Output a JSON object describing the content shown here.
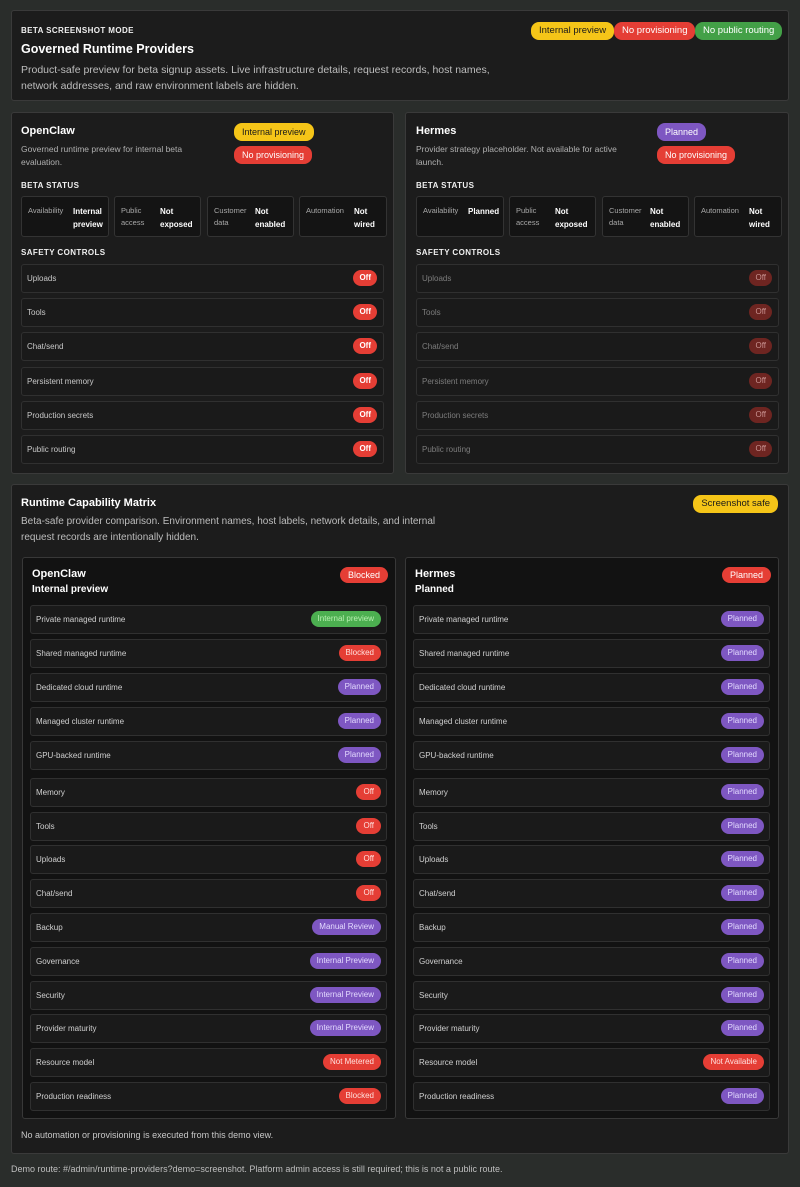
{
  "header": {
    "mode": "BETA SCREENSHOT MODE",
    "title": "Governed Runtime Providers",
    "description": "Product-safe preview for beta signup assets. Live infrastructure details, request records, host names, network addresses, and raw environment labels are hidden.",
    "badges": [
      "Internal preview",
      "No provisioning",
      "No public routing"
    ]
  },
  "providers": [
    {
      "name": "OpenClaw",
      "description": "Governed runtime preview for internal beta evaluation.",
      "badges": [
        "Internal preview",
        "No provisioning"
      ],
      "status_title": "BETA STATUS",
      "status": [
        {
          "label": "Availability",
          "value": "Internal preview"
        },
        {
          "label": "Public access",
          "value": "Not exposed"
        },
        {
          "label": "Customer data",
          "value": "Not enabled"
        },
        {
          "label": "Automation",
          "value": "Not wired"
        }
      ],
      "controls_title": "SAFETY CONTROLS",
      "controls": [
        {
          "label": "Uploads",
          "value": "Off"
        },
        {
          "label": "Tools",
          "value": "Off"
        },
        {
          "label": "Chat/send",
          "value": "Off"
        },
        {
          "label": "Persistent memory",
          "value": "Off"
        },
        {
          "label": "Production secrets",
          "value": "Off"
        },
        {
          "label": "Public routing",
          "value": "Off"
        }
      ]
    },
    {
      "name": "Hermes",
      "description": "Provider strategy placeholder. Not available for active launch.",
      "badges": [
        "Planned",
        "No provisioning"
      ],
      "status_title": "BETA STATUS",
      "status": [
        {
          "label": "Availability",
          "value": "Planned"
        },
        {
          "label": "Public access",
          "value": "Not exposed"
        },
        {
          "label": "Customer data",
          "value": "Not enabled"
        },
        {
          "label": "Automation",
          "value": "Not wired"
        }
      ],
      "controls_title": "SAFETY CONTROLS",
      "controls": [
        {
          "label": "Uploads",
          "value": "Off"
        },
        {
          "label": "Tools",
          "value": "Off"
        },
        {
          "label": "Chat/send",
          "value": "Off"
        },
        {
          "label": "Persistent memory",
          "value": "Off"
        },
        {
          "label": "Production secrets",
          "value": "Off"
        },
        {
          "label": "Public routing",
          "value": "Off"
        }
      ]
    }
  ],
  "matrix": {
    "title": "Runtime Capability Matrix",
    "badge": "Screenshot safe",
    "description": "Beta-safe provider comparison. Environment names, host labels, network details, and internal request records are intentionally hidden.",
    "columns": [
      {
        "name": "OpenClaw",
        "subtitle": "Internal preview",
        "badge": "Blocked",
        "rows": [
          {
            "label": "Private managed runtime",
            "value": "Internal preview",
            "color": "green"
          },
          {
            "label": "Shared managed runtime",
            "value": "Blocked",
            "color": "red"
          },
          {
            "label": "Dedicated cloud runtime",
            "value": "Planned",
            "color": "purple"
          },
          {
            "label": "Managed cluster runtime",
            "value": "Planned",
            "color": "purple"
          },
          {
            "label": "GPU-backed runtime",
            "value": "Planned",
            "color": "purple"
          },
          {
            "label": "Memory",
            "value": "Off",
            "color": "red"
          },
          {
            "label": "Tools",
            "value": "Off",
            "color": "red"
          },
          {
            "label": "Uploads",
            "value": "Off",
            "color": "red"
          },
          {
            "label": "Chat/send",
            "value": "Off",
            "color": "red"
          },
          {
            "label": "Backup",
            "value": "Manual Review",
            "color": "purple"
          },
          {
            "label": "Governance",
            "value": "Internal Preview",
            "color": "purple"
          },
          {
            "label": "Security",
            "value": "Internal Preview",
            "color": "purple"
          },
          {
            "label": "Provider maturity",
            "value": "Internal Preview",
            "color": "purple"
          },
          {
            "label": "Resource model",
            "value": "Not Metered",
            "color": "red"
          },
          {
            "label": "Production readiness",
            "value": "Blocked",
            "color": "red"
          }
        ]
      },
      {
        "name": "Hermes",
        "subtitle": "Planned",
        "badge": "Planned",
        "rows": [
          {
            "label": "Private managed runtime",
            "value": "Planned",
            "color": "purple"
          },
          {
            "label": "Shared managed runtime",
            "value": "Planned",
            "color": "purple"
          },
          {
            "label": "Dedicated cloud runtime",
            "value": "Planned",
            "color": "purple"
          },
          {
            "label": "Managed cluster runtime",
            "value": "Planned",
            "color": "purple"
          },
          {
            "label": "GPU-backed runtime",
            "value": "Planned",
            "color": "purple"
          },
          {
            "label": "Memory",
            "value": "Planned",
            "color": "purple"
          },
          {
            "label": "Tools",
            "value": "Planned",
            "color": "purple"
          },
          {
            "label": "Uploads",
            "value": "Planned",
            "color": "purple"
          },
          {
            "label": "Chat/send",
            "value": "Planned",
            "color": "purple"
          },
          {
            "label": "Backup",
            "value": "Planned",
            "color": "purple"
          },
          {
            "label": "Governance",
            "value": "Planned",
            "color": "purple"
          },
          {
            "label": "Security",
            "value": "Planned",
            "color": "purple"
          },
          {
            "label": "Provider maturity",
            "value": "Planned",
            "color": "purple"
          },
          {
            "label": "Resource model",
            "value": "Not Available",
            "color": "red"
          },
          {
            "label": "Production readiness",
            "value": "Planned",
            "color": "purple"
          }
        ]
      }
    ],
    "footnote": "No automation or provisioning is executed from this demo view."
  },
  "footer": "Demo route: #/admin/runtime-providers?demo=screenshot. Platform admin access is still required; this is not a public route."
}
